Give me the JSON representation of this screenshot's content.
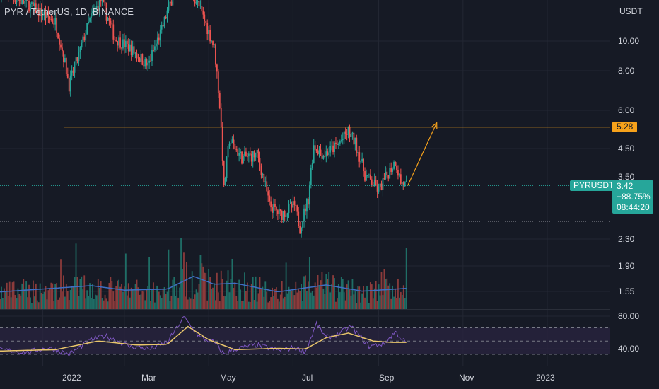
{
  "title": "PYR / TetherUS, 1D, BINANCE",
  "price_scale": {
    "currency": "USDT",
    "ticks": [
      "10.00",
      "8.00",
      "6.00",
      "4.50",
      "2.30",
      "1.90",
      "1.55"
    ],
    "partial_tick": "3.50"
  },
  "level_tag": "5.28",
  "ticker_tag": "PYRUSDT",
  "last_price": {
    "price": "3.42",
    "change": "−88.75%",
    "countdown": "08:44:20"
  },
  "rsi_scale": {
    "ticks": [
      "80.00",
      "40.00"
    ]
  },
  "time_axis": {
    "labels": [
      "2022",
      "Mar",
      "May",
      "Jul",
      "Sep",
      "Nov",
      "2023"
    ]
  },
  "colors": {
    "background": "#161a25",
    "grid": "#232733",
    "up": "#26a69a",
    "down": "#ef5350",
    "volume_up": "#1f6e66",
    "volume_down": "#8b3b3b",
    "volume_ma": "#3f6fc4",
    "level_line": "#f7a21b",
    "projection_arrow": "#f7a21b",
    "rsi_line": "#7e57c2",
    "rsi_ma": "#e9c66b",
    "rsi_band": "#2a2440",
    "text": "#d1d4dc"
  },
  "chart_data": {
    "type": "candlestick",
    "title": "PYR / TetherUS, 1D, BINANCE",
    "scale": "log",
    "y_range_price": [
      1.2,
      14
    ],
    "horizontal_level": 5.28,
    "last_price": 3.42,
    "change_percent": -88.75,
    "projection_target": 5.45,
    "x_range": [
      "2021-12-01",
      "2023-02-15"
    ],
    "price_anchors": [
      [
        "2021-12-01",
        14.5
      ],
      [
        "2021-12-20",
        13.2
      ],
      [
        "2022-01-10",
        11.5
      ],
      [
        "2022-01-20",
        7.2
      ],
      [
        "2022-01-27",
        9.0
      ],
      [
        "2022-02-05",
        12.0
      ],
      [
        "2022-02-12",
        13.5
      ],
      [
        "2022-02-22",
        10.2
      ],
      [
        "2022-03-05",
        9.5
      ],
      [
        "2022-03-18",
        8.3
      ],
      [
        "2022-03-28",
        10.8
      ],
      [
        "2022-04-05",
        14.0
      ],
      [
        "2022-04-12",
        16.0
      ],
      [
        "2022-04-22",
        13.5
      ],
      [
        "2022-04-30",
        11.0
      ],
      [
        "2022-05-05",
        9.5
      ],
      [
        "2022-05-09",
        6.2
      ],
      [
        "2022-05-12",
        3.3
      ],
      [
        "2022-05-16",
        4.8
      ],
      [
        "2022-05-25",
        4.2
      ],
      [
        "2022-06-05",
        4.3
      ],
      [
        "2022-06-14",
        2.95
      ],
      [
        "2022-06-22",
        2.75
      ],
      [
        "2022-07-02",
        2.95
      ],
      [
        "2022-07-06",
        2.5
      ],
      [
        "2022-07-12",
        3.1
      ],
      [
        "2022-07-16",
        4.6
      ],
      [
        "2022-07-23",
        4.3
      ],
      [
        "2022-08-02",
        4.6
      ],
      [
        "2022-08-10",
        5.1
      ],
      [
        "2022-08-15",
        4.7
      ],
      [
        "2022-08-22",
        3.7
      ],
      [
        "2022-09-01",
        3.3
      ],
      [
        "2022-09-07",
        3.7
      ],
      [
        "2022-09-13",
        4.1
      ],
      [
        "2022-09-17",
        3.5
      ],
      [
        "2022-09-21",
        3.42
      ]
    ],
    "volume_range": [
      0,
      2.4
    ],
    "volume_ma_anchors": [
      [
        "2021-12-01",
        0.5
      ],
      [
        "2022-01-15",
        0.62
      ],
      [
        "2022-02-05",
        0.68
      ],
      [
        "2022-03-01",
        0.55
      ],
      [
        "2022-04-01",
        0.58
      ],
      [
        "2022-04-20",
        0.95
      ],
      [
        "2022-05-05",
        0.72
      ],
      [
        "2022-05-20",
        0.75
      ],
      [
        "2022-06-20",
        0.5
      ],
      [
        "2022-07-25",
        0.7
      ],
      [
        "2022-08-20",
        0.52
      ],
      [
        "2022-09-21",
        0.6
      ]
    ],
    "rsi": {
      "ylim": [
        15,
        95
      ],
      "upper_band": 70,
      "middle": 50,
      "lower_band": 30,
      "anchors": [
        [
          "2021-12-01",
          37
        ],
        [
          "2021-12-20",
          33
        ],
        [
          "2022-01-05",
          40
        ],
        [
          "2022-01-20",
          30
        ],
        [
          "2022-02-05",
          52
        ],
        [
          "2022-02-15",
          58
        ],
        [
          "2022-03-05",
          42
        ],
        [
          "2022-03-20",
          38
        ],
        [
          "2022-04-01",
          48
        ],
        [
          "2022-04-13",
          86
        ],
        [
          "2022-04-25",
          55
        ],
        [
          "2022-05-05",
          48
        ],
        [
          "2022-05-12",
          30
        ],
        [
          "2022-05-20",
          38
        ],
        [
          "2022-06-05",
          44
        ],
        [
          "2022-06-20",
          36
        ],
        [
          "2022-07-02",
          40
        ],
        [
          "2022-07-10",
          34
        ],
        [
          "2022-07-18",
          76
        ],
        [
          "2022-07-25",
          55
        ],
        [
          "2022-08-02",
          60
        ],
        [
          "2022-08-12",
          72
        ],
        [
          "2022-08-25",
          42
        ],
        [
          "2022-09-05",
          46
        ],
        [
          "2022-09-13",
          64
        ],
        [
          "2022-09-21",
          46
        ]
      ],
      "ma_anchors": [
        [
          "2021-12-01",
          35
        ],
        [
          "2022-01-10",
          37
        ],
        [
          "2022-02-10",
          50
        ],
        [
          "2022-03-10",
          44
        ],
        [
          "2022-04-01",
          45
        ],
        [
          "2022-04-16",
          72
        ],
        [
          "2022-05-01",
          52
        ],
        [
          "2022-05-20",
          37
        ],
        [
          "2022-06-20",
          39
        ],
        [
          "2022-07-10",
          38
        ],
        [
          "2022-07-25",
          55
        ],
        [
          "2022-08-10",
          62
        ],
        [
          "2022-08-28",
          50
        ],
        [
          "2022-09-10",
          48
        ],
        [
          "2022-09-21",
          48
        ]
      ]
    }
  }
}
